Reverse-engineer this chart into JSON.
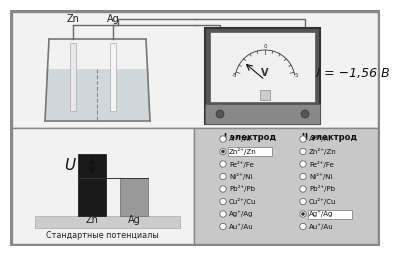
{
  "voltage_text": "U = −1,56 В",
  "bottom_label": "Стандартные потенциалы",
  "u_label": "U",
  "zn_label": "Zn",
  "ag_label": "Ag",
  "col1_header": "I электрод",
  "col2_header": "II электрод",
  "electrodes": [
    "Al³⁺/Al",
    "Zn²⁺/Zn",
    "Fe²⁺/Fe",
    "Ni²⁺/Ni",
    "Pb²⁺/Pb",
    "Cu²⁺/Cu",
    "Ag⁺/Ag",
    "Au⁺/Au"
  ],
  "col1_selected": 1,
  "col2_selected": 6,
  "bg_panel": "#f0f0f0",
  "bg_right": "#c8c8c8",
  "bar_zn_color": "#1a1a1a",
  "bar_ag_color": "#999999"
}
